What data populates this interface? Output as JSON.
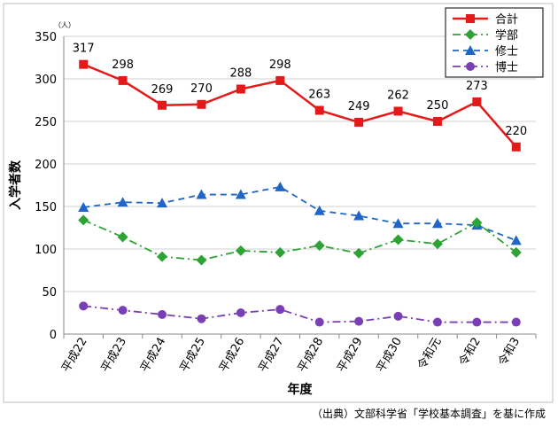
{
  "chart_data": {
    "type": "line",
    "title": "",
    "xlabel": "年度",
    "ylabel": "入学者数",
    "y_unit": "（人）",
    "ylim": [
      0,
      350
    ],
    "y_ticks": [
      0,
      50,
      100,
      150,
      200,
      250,
      300,
      350
    ],
    "grid": "horizontal",
    "legend_position": "top-right",
    "categories": [
      "平成22",
      "平成23",
      "平成24",
      "平成25",
      "平成26",
      "平成27",
      "平成28",
      "平成29",
      "平成30",
      "令和元",
      "令和2",
      "令和3"
    ],
    "series": [
      {
        "name": "合計",
        "color": "#e41a1a",
        "marker": "square",
        "line": "solid",
        "show_labels": true,
        "values": [
          317,
          298,
          269,
          270,
          288,
          298,
          263,
          249,
          262,
          250,
          273,
          220
        ]
      },
      {
        "name": "学部",
        "color": "#2ea335",
        "marker": "diamond",
        "line": "dashdot",
        "show_labels": false,
        "values": [
          134,
          114,
          91,
          87,
          98,
          96,
          104,
          95,
          111,
          106,
          131,
          96
        ]
      },
      {
        "name": "修士",
        "color": "#1f66c8",
        "marker": "triangle",
        "line": "dashed",
        "show_labels": false,
        "values": [
          149,
          155,
          154,
          164,
          164,
          173,
          145,
          139,
          130,
          130,
          128,
          110
        ]
      },
      {
        "name": "博士",
        "color": "#7b3fb5",
        "marker": "circle",
        "line": "dashdot",
        "show_labels": false,
        "values": [
          33,
          28,
          23,
          18,
          25,
          29,
          14,
          15,
          21,
          14,
          14,
          14
        ]
      }
    ]
  },
  "source_note": "（出典）文部科学省「学校基本調査」を基に作成"
}
